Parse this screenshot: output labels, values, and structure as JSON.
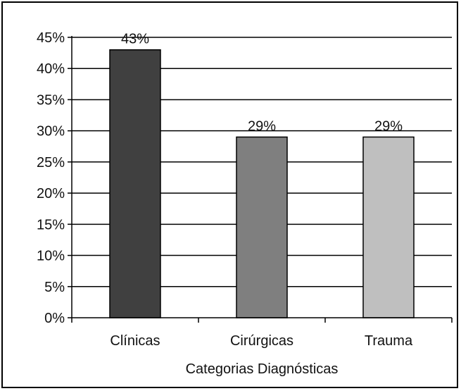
{
  "chart_data": {
    "type": "bar",
    "categories": [
      "Clínicas",
      "Cirúrgicas",
      "Trauma"
    ],
    "values": [
      43,
      29,
      29
    ],
    "data_labels": [
      "43%",
      "29%",
      "29%"
    ],
    "colors": [
      "#404040",
      "#7f7f7f",
      "#bfbfbf"
    ],
    "title": "",
    "xlabel": "Categorias Diagnósticas",
    "ylabel": "",
    "ylim": [
      0,
      45
    ],
    "yticks": [
      "0%",
      "5%",
      "10%",
      "15%",
      "20%",
      "25%",
      "30%",
      "35%",
      "40%",
      "45%"
    ],
    "grid": true,
    "legend": "none"
  }
}
